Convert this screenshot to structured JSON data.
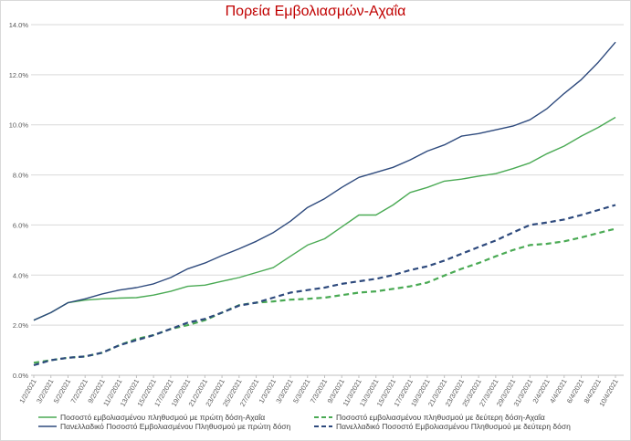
{
  "chart_data": {
    "type": "line",
    "title": "Πορεία Εμβολιασμών-Αχαΐα",
    "xlabel": "",
    "ylabel": "",
    "ylim": [
      0,
      0.14
    ],
    "yticks": [
      0,
      0.02,
      0.04,
      0.06,
      0.08,
      0.1,
      0.12,
      0.14
    ],
    "ytick_labels": [
      "0.0%",
      "2.0%",
      "4.0%",
      "6.0%",
      "8.0%",
      "10.0%",
      "12.0%",
      "14.0%"
    ],
    "grid": "horizontal",
    "legend_position": "bottom",
    "x": [
      "1/2/2021",
      "3/2/2021",
      "5/2/2021",
      "7/2/2021",
      "9/2/2021",
      "11/2/2021",
      "13/2/2021",
      "15/2/2021",
      "17/2/2021",
      "19/2/2021",
      "21/2/2021",
      "23/2/2021",
      "25/2/2021",
      "27/2/2021",
      "1/3/2021",
      "3/3/2021",
      "5/3/2021",
      "7/3/2021",
      "9/3/2021",
      "11/3/2021",
      "13/3/2021",
      "15/3/2021",
      "17/3/2021",
      "19/3/2021",
      "21/3/2021",
      "23/3/2021",
      "25/3/2021",
      "27/3/2021",
      "29/3/2021",
      "31/3/2021",
      "2/4/2021",
      "4/4/2021",
      "6/4/2021",
      "8/4/2021",
      "10/4/2021"
    ],
    "series": [
      {
        "name": "Ποσοστό εμβολιασμένου πληθυσμού με πρώτη δόση-Αχαΐα",
        "color": "#4aaa54",
        "dash": "solid",
        "values": [
          0.022,
          0.025,
          0.029,
          0.03,
          0.0305,
          0.0308,
          0.031,
          0.032,
          0.0335,
          0.0355,
          0.036,
          0.0375,
          0.039,
          0.041,
          0.043,
          0.0475,
          0.052,
          0.0545,
          0.0592,
          0.064,
          0.064,
          0.068,
          0.073,
          0.075,
          0.0775,
          0.0783,
          0.0795,
          0.0805,
          0.0825,
          0.0848,
          0.0885,
          0.0915,
          0.0955,
          0.099,
          0.103
        ]
      },
      {
        "name": "Ποσοστό εμβολιασμένου πληθυσμού με δεύτερη δόση-Αχαΐα",
        "color": "#4aaa54",
        "dash": "dashed",
        "values": [
          0.005,
          0.006,
          0.007,
          0.0075,
          0.009,
          0.012,
          0.0145,
          0.016,
          0.0185,
          0.02,
          0.022,
          0.025,
          0.028,
          0.029,
          0.0295,
          0.0302,
          0.0305,
          0.031,
          0.032,
          0.033,
          0.0335,
          0.0345,
          0.0355,
          0.037,
          0.0398,
          0.0425,
          0.0448,
          0.0475,
          0.05,
          0.052,
          0.0525,
          0.0535,
          0.055,
          0.0568,
          0.0585
        ]
      },
      {
        "name": "Πανελλαδικό Ποσοστό Εμβολιασμένου Πληθυσμού με πρώτη δόση",
        "color": "#2e4a7d",
        "dash": "solid",
        "values": [
          0.022,
          0.025,
          0.029,
          0.0305,
          0.0325,
          0.034,
          0.035,
          0.0365,
          0.039,
          0.0425,
          0.0448,
          0.0478,
          0.0505,
          0.0535,
          0.057,
          0.0615,
          0.067,
          0.0705,
          0.075,
          0.079,
          0.081,
          0.083,
          0.086,
          0.0895,
          0.092,
          0.0955,
          0.0965,
          0.098,
          0.0995,
          0.102,
          0.1065,
          0.1125,
          0.118,
          0.125,
          0.133
        ]
      },
      {
        "name": "Πανελλαδικό Ποσοστό Εμβολιασμένου Πληθυσμού με δεύτερη δόση",
        "color": "#2e4a7d",
        "dash": "dashed",
        "values": [
          0.004,
          0.006,
          0.007,
          0.0075,
          0.009,
          0.012,
          0.014,
          0.016,
          0.0185,
          0.021,
          0.0225,
          0.025,
          0.0278,
          0.029,
          0.031,
          0.033,
          0.034,
          0.035,
          0.0365,
          0.0375,
          0.0385,
          0.04,
          0.042,
          0.0435,
          0.0458,
          0.0485,
          0.0512,
          0.0538,
          0.057,
          0.06,
          0.061,
          0.0622,
          0.064,
          0.066,
          0.068
        ]
      }
    ]
  }
}
